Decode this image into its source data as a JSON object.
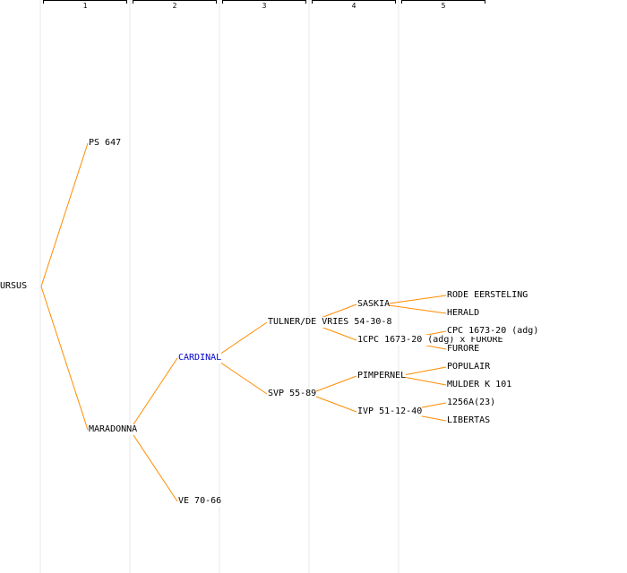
{
  "columns": [
    "1",
    "2",
    "3",
    "4",
    "5"
  ],
  "edge_color": "#ff8c00",
  "link_color": "#0000cc",
  "nodes": [
    {
      "id": "ursus",
      "label": "URSUS",
      "col": 0,
      "parent": null
    },
    {
      "id": "ps647",
      "label": "PS 647",
      "col": 1,
      "parent": "ursus"
    },
    {
      "id": "maradonna",
      "label": "MARADONNA",
      "col": 1,
      "parent": "ursus"
    },
    {
      "id": "cardinal",
      "label": "CARDINAL",
      "col": 2,
      "parent": "maradonna",
      "link": true
    },
    {
      "id": "ve7066",
      "label": "VE 70-66",
      "col": 2,
      "parent": "maradonna"
    },
    {
      "id": "tulner",
      "label": "TULNER/DE VRIES 54-30-8",
      "col": 3,
      "parent": "cardinal"
    },
    {
      "id": "svp5589",
      "label": "SVP 55-89",
      "col": 3,
      "parent": "cardinal"
    },
    {
      "id": "saskia",
      "label": "SASKIA",
      "col": 4,
      "parent": "tulner"
    },
    {
      "id": "cpcfurore",
      "label": "1CPC 1673-20 (adg) x FURORE",
      "col": 4,
      "parent": "tulner"
    },
    {
      "id": "pimpernel",
      "label": "PIMPERNEL",
      "col": 4,
      "parent": "svp5589"
    },
    {
      "id": "ivp",
      "label": "IVP 51-12-40",
      "col": 4,
      "parent": "svp5589"
    },
    {
      "id": "rode",
      "label": "RODE EERSTELING",
      "col": 5,
      "parent": "saskia"
    },
    {
      "id": "herald",
      "label": "HERALD",
      "col": 5,
      "parent": "saskia"
    },
    {
      "id": "cpc",
      "label": "CPC 1673-20 (adg)",
      "col": 5,
      "parent": "cpcfurore"
    },
    {
      "id": "furore",
      "label": "FURORE",
      "col": 5,
      "parent": "cpcfurore"
    },
    {
      "id": "populair",
      "label": "POPULAIR",
      "col": 5,
      "parent": "pimpernel"
    },
    {
      "id": "mulder",
      "label": "MULDER K 101",
      "col": 5,
      "parent": "pimpernel"
    },
    {
      "id": "s1256a",
      "label": "1256A(23)",
      "col": 5,
      "parent": "ivp"
    },
    {
      "id": "libertas",
      "label": "LIBERTAS",
      "col": 5,
      "parent": "ivp"
    }
  ]
}
